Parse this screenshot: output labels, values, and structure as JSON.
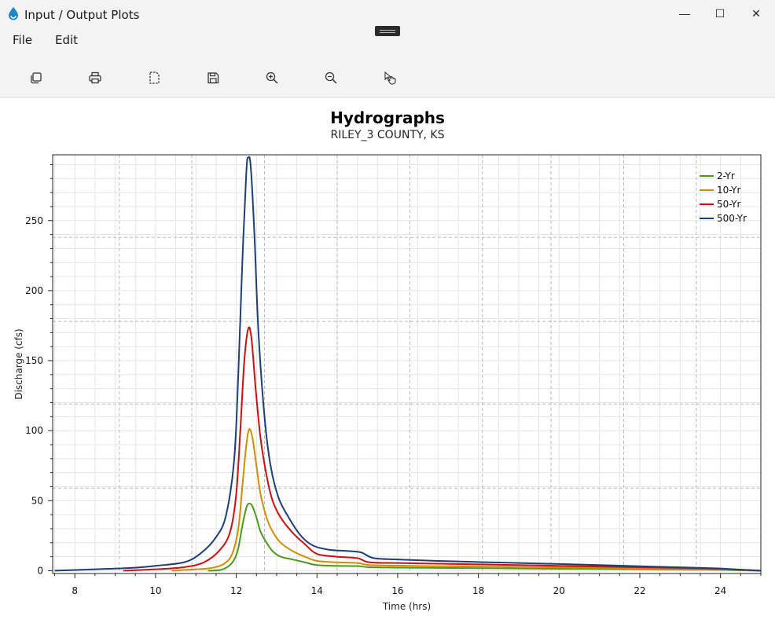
{
  "window": {
    "title": "Input / Output Plots",
    "controls": {
      "minimize": "—",
      "maximize": "☐",
      "close": "✕"
    }
  },
  "menu": {
    "items": [
      {
        "label": "File"
      },
      {
        "label": "Edit"
      }
    ]
  },
  "toolbar": {
    "buttons": [
      {
        "name": "copy-icon"
      },
      {
        "name": "print-icon"
      },
      {
        "name": "select-region-icon"
      },
      {
        "name": "save-icon"
      },
      {
        "name": "zoom-in-icon"
      },
      {
        "name": "zoom-out-icon"
      },
      {
        "name": "pointer-hand-icon"
      }
    ]
  },
  "chart_data": {
    "type": "line",
    "title": "Hydrographs",
    "subtitle": "RILEY_3 COUNTY, KS",
    "xlabel": "Time (hrs)",
    "ylabel": "Discharge (cfs)",
    "xlim": [
      7.45,
      25.0
    ],
    "ylim": [
      -2,
      297
    ],
    "xticks": [
      8,
      10,
      12,
      14,
      16,
      18,
      20,
      22,
      24
    ],
    "yticks": [
      0,
      50,
      100,
      150,
      200,
      250
    ],
    "grid": true,
    "legend_position": "top-right",
    "series": [
      {
        "name": "2-Yr",
        "color": "#4a9a1c",
        "points": [
          [
            11.3,
            0
          ],
          [
            11.6,
            0.5
          ],
          [
            11.8,
            3
          ],
          [
            11.95,
            8
          ],
          [
            12.05,
            16
          ],
          [
            12.15,
            32
          ],
          [
            12.25,
            45
          ],
          [
            12.32,
            48
          ],
          [
            12.4,
            46
          ],
          [
            12.5,
            38
          ],
          [
            12.6,
            28
          ],
          [
            12.75,
            20
          ],
          [
            12.9,
            14
          ],
          [
            13.1,
            10
          ],
          [
            13.4,
            8
          ],
          [
            13.7,
            6
          ],
          [
            14,
            4
          ],
          [
            14.5,
            3.5
          ],
          [
            15,
            3.3
          ],
          [
            15.3,
            2.5
          ],
          [
            16,
            2.2
          ],
          [
            17,
            2
          ],
          [
            18,
            1.8
          ],
          [
            19,
            1.6
          ],
          [
            20,
            1.4
          ],
          [
            21,
            1.2
          ],
          [
            22,
            1
          ],
          [
            23,
            0.8
          ],
          [
            24,
            0.6
          ],
          [
            24.4,
            0.3
          ],
          [
            25,
            0
          ]
        ]
      },
      {
        "name": "10-Yr",
        "color": "#d48c00",
        "points": [
          [
            10.4,
            0
          ],
          [
            11,
            1
          ],
          [
            11.4,
            2
          ],
          [
            11.7,
            5
          ],
          [
            11.9,
            12
          ],
          [
            12.05,
            30
          ],
          [
            12.15,
            60
          ],
          [
            12.25,
            90
          ],
          [
            12.32,
            101
          ],
          [
            12.4,
            95
          ],
          [
            12.5,
            75
          ],
          [
            12.6,
            55
          ],
          [
            12.75,
            38
          ],
          [
            12.9,
            28
          ],
          [
            13.1,
            20
          ],
          [
            13.4,
            14
          ],
          [
            13.7,
            10
          ],
          [
            14,
            7
          ],
          [
            14.5,
            6
          ],
          [
            15,
            5.5
          ],
          [
            15.3,
            4
          ],
          [
            16,
            3.6
          ],
          [
            17,
            3.2
          ],
          [
            18,
            3
          ],
          [
            19,
            2.7
          ],
          [
            20,
            2.4
          ],
          [
            21,
            2
          ],
          [
            22,
            1.6
          ],
          [
            23,
            1.2
          ],
          [
            24,
            0.9
          ],
          [
            24.4,
            0.5
          ],
          [
            25,
            0
          ]
        ]
      },
      {
        "name": "50-Yr",
        "color": "#cc1010",
        "points": [
          [
            9.2,
            0
          ],
          [
            10,
            1
          ],
          [
            10.7,
            2.5
          ],
          [
            11.2,
            6
          ],
          [
            11.6,
            15
          ],
          [
            11.85,
            28
          ],
          [
            12.0,
            55
          ],
          [
            12.1,
            100
          ],
          [
            12.2,
            150
          ],
          [
            12.3,
            173
          ],
          [
            12.38,
            165
          ],
          [
            12.48,
            130
          ],
          [
            12.6,
            95
          ],
          [
            12.75,
            68
          ],
          [
            12.9,
            50
          ],
          [
            13.1,
            38
          ],
          [
            13.4,
            27
          ],
          [
            13.7,
            19
          ],
          [
            14,
            12
          ],
          [
            14.5,
            10
          ],
          [
            15,
            9
          ],
          [
            15.3,
            6
          ],
          [
            16,
            5.5
          ],
          [
            17,
            5
          ],
          [
            18,
            4.5
          ],
          [
            19,
            4
          ],
          [
            20,
            3.5
          ],
          [
            21,
            3
          ],
          [
            22,
            2.5
          ],
          [
            23,
            2
          ],
          [
            24,
            1.4
          ],
          [
            24.4,
            0.8
          ],
          [
            25,
            0
          ]
        ]
      },
      {
        "name": "500-Yr",
        "color": "#1c3f7a",
        "points": [
          [
            7.5,
            0
          ],
          [
            8.5,
            1
          ],
          [
            9.4,
            2
          ],
          [
            10,
            3.5
          ],
          [
            10.7,
            6
          ],
          [
            11.1,
            12
          ],
          [
            11.5,
            24
          ],
          [
            11.75,
            40
          ],
          [
            11.95,
            80
          ],
          [
            12.05,
            140
          ],
          [
            12.15,
            220
          ],
          [
            12.25,
            285
          ],
          [
            12.3,
            295
          ],
          [
            12.36,
            288
          ],
          [
            12.45,
            240
          ],
          [
            12.55,
            170
          ],
          [
            12.7,
            110
          ],
          [
            12.85,
            75
          ],
          [
            13.05,
            52
          ],
          [
            13.3,
            38
          ],
          [
            13.6,
            25
          ],
          [
            13.9,
            18
          ],
          [
            14.3,
            15
          ],
          [
            14.8,
            14
          ],
          [
            15.1,
            13
          ],
          [
            15.4,
            9
          ],
          [
            16,
            8
          ],
          [
            17,
            7
          ],
          [
            18,
            6.2
          ],
          [
            19,
            5.5
          ],
          [
            20,
            4.8
          ],
          [
            21,
            4
          ],
          [
            22,
            3.2
          ],
          [
            23,
            2.4
          ],
          [
            24,
            1.6
          ],
          [
            24.4,
            0.9
          ],
          [
            25,
            0
          ]
        ]
      }
    ]
  }
}
